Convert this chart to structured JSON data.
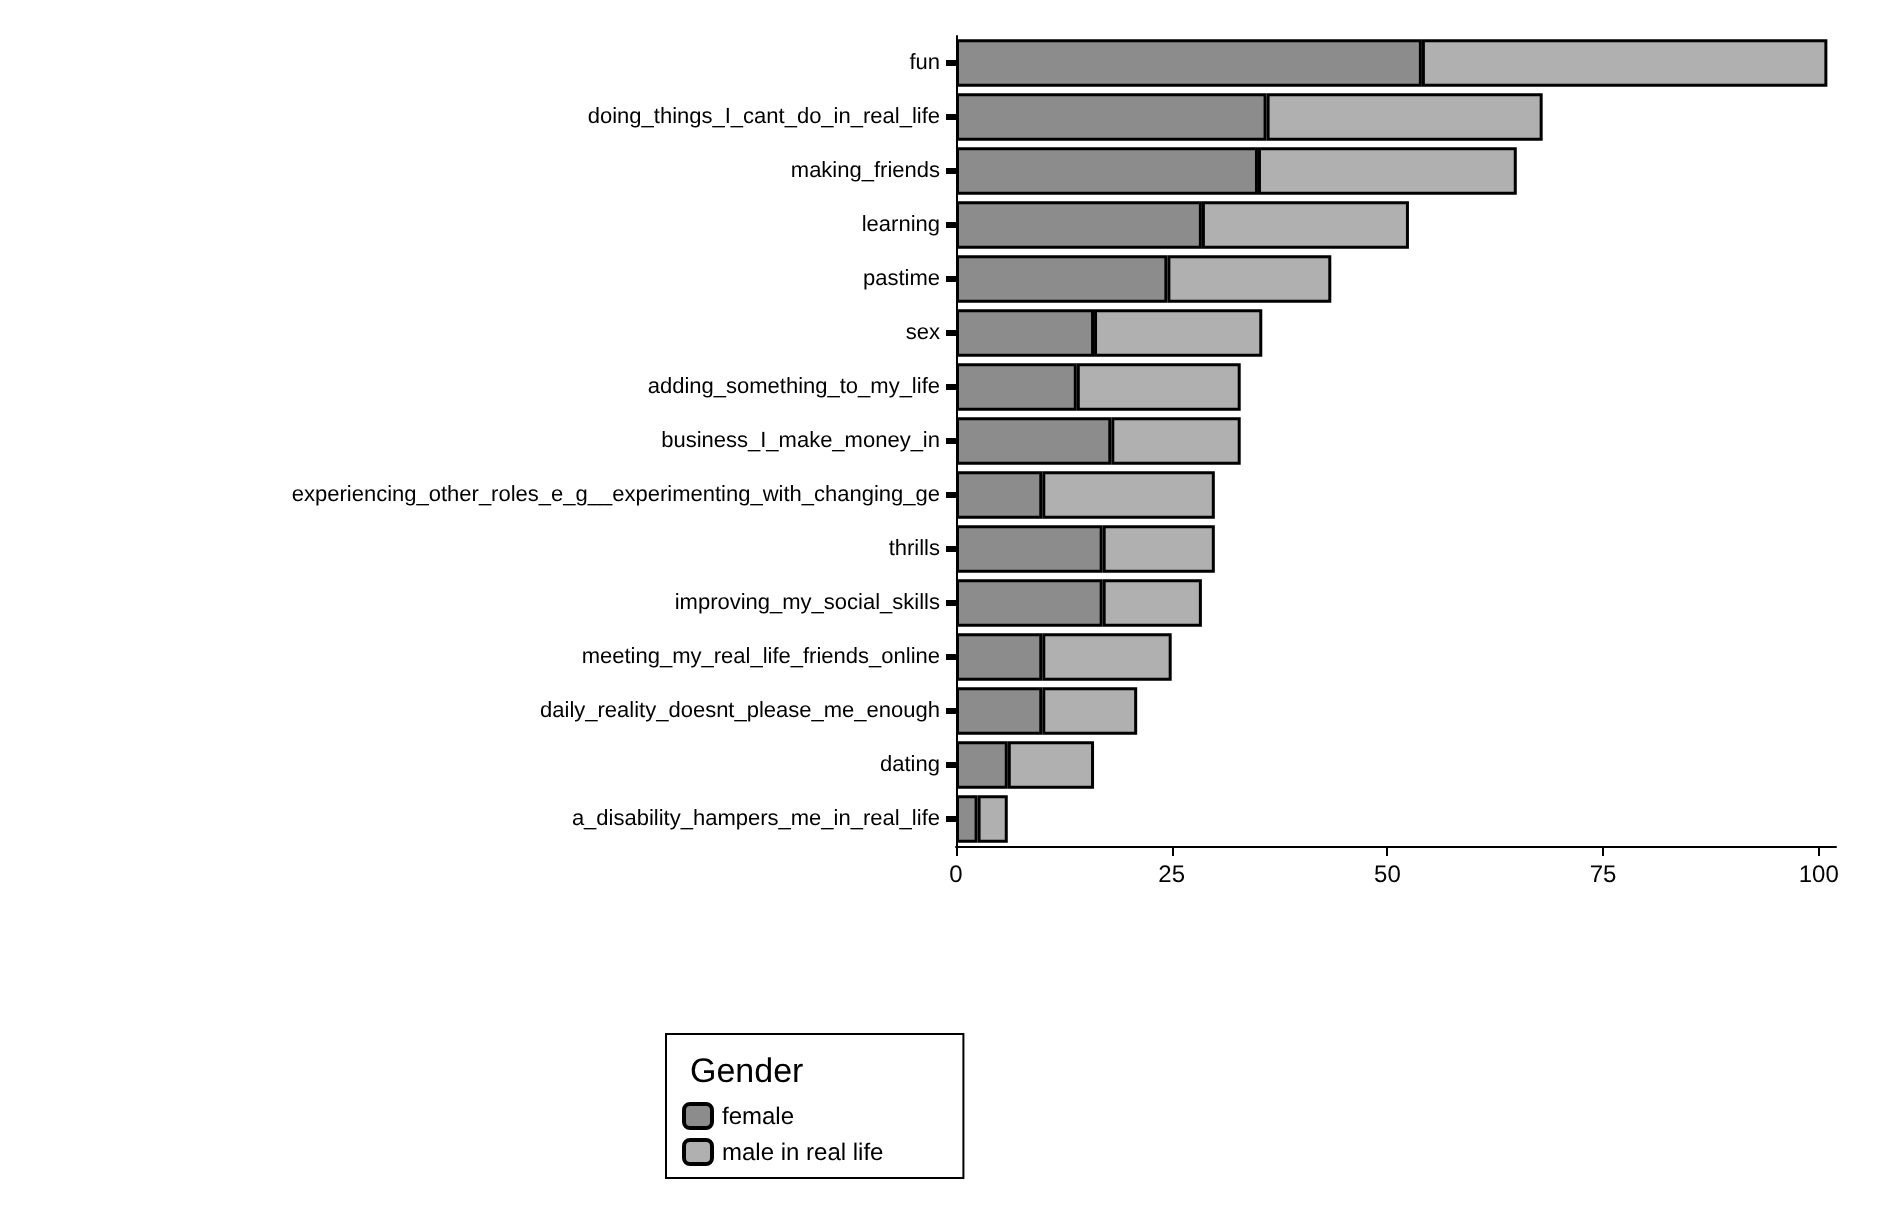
{
  "chart_data": {
    "type": "bar",
    "orientation": "horizontal",
    "stacked": true,
    "categories": [
      "fun",
      "doing_things_I_cant_do_in_real_life",
      "making_friends",
      "learning",
      "pastime",
      "sex",
      "adding_something_to_my_life",
      "business_I_make_money_in",
      "experiencing_other_roles_e_g__experimenting_with_changing_ge",
      "thrills",
      "improving_my_social_skills",
      "meeting_my_real_life_friends_online",
      "daily_reality_doesnt_please_me_enough",
      "dating",
      "a_disability_hampers_me_in_real_life"
    ],
    "series": [
      {
        "name": "female",
        "color": "#8c8c8c",
        "values": [
          54,
          36,
          35,
          28.5,
          24.5,
          16,
          14,
          18,
          10,
          17,
          17,
          10,
          10,
          6,
          2.5
        ]
      },
      {
        "name": "male in real life",
        "color": "#b0b0b0",
        "values": [
          47,
          32,
          30,
          24,
          19,
          19.5,
          19,
          15,
          20,
          13,
          11.5,
          15,
          11,
          10,
          3.5
        ]
      }
    ],
    "xlim": [
      0,
      102
    ],
    "xticks": [
      0,
      25,
      50,
      75,
      100
    ],
    "legend": "bottom",
    "legend_title": "Gender",
    "grid": false
  }
}
